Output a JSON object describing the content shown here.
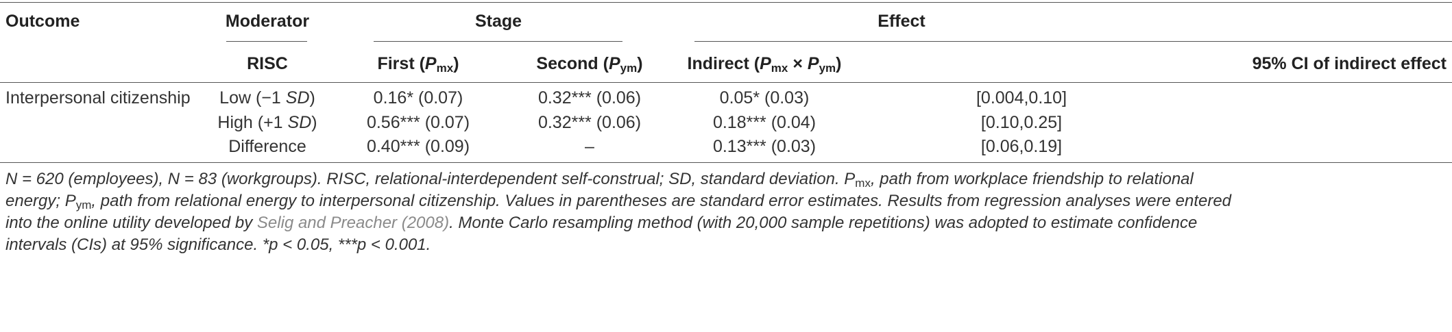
{
  "header": {
    "outcome": "Outcome",
    "moderator": "Moderator",
    "stage": "Stage",
    "effect": "Effect",
    "risc": "RISC",
    "first_prefix": "First (",
    "first_p": "P",
    "first_sub": "mx",
    "first_suffix": ")",
    "second_prefix": "Second (",
    "second_p": "P",
    "second_sub": "ym",
    "second_suffix": ")",
    "indirect_prefix": "Indirect (",
    "indirect_p1": "P",
    "indirect_sub1": "mx",
    "indirect_times": " × ",
    "indirect_p2": "P",
    "indirect_sub2": "ym",
    "indirect_suffix": ")",
    "ci": "95% CI of indirect effect"
  },
  "rows": [
    {
      "outcome": "Interpersonal citizenship",
      "mod_prefix": "Low (−1 ",
      "mod_sd": "SD",
      "mod_suffix": ")",
      "first": "0.16* (0.07)",
      "second": "0.32*** (0.06)",
      "indirect": "0.05* (0.03)",
      "ci": "[0.004,0.10]"
    },
    {
      "outcome": "",
      "mod_prefix": "High (+1 ",
      "mod_sd": "SD",
      "mod_suffix": ")",
      "first": "0.56*** (0.07)",
      "second": "0.32*** (0.06)",
      "indirect": "0.18*** (0.04)",
      "ci": "[0.10,0.25]"
    },
    {
      "outcome": "",
      "mod_prefix": "Difference",
      "mod_sd": "",
      "mod_suffix": "",
      "first": "0.40*** (0.09)",
      "second": "–",
      "indirect": "0.13*** (0.03)",
      "ci": "[0.06,0.19]"
    }
  ],
  "note": {
    "l1_a": "N = 620 (employees), N = 83 (workgroups). RISC, relational-interdependent self-construal; SD, standard deviation. P",
    "l1_sub": "mx",
    "l1_b": ", path from workplace friendship to relational",
    "l2_a": "energy; P",
    "l2_sub": "ym",
    "l2_b": ", path from relational energy to interpersonal citizenship. Values in parentheses are standard error estimates. Results from regression analyses were entered",
    "l3_a": "into the online utility developed by ",
    "l3_ref": "Selig and Preacher (2008)",
    "l3_b": ". Monte Carlo resampling method (with 20,000 sample repetitions) was adopted to estimate confidence",
    "l4": "intervals (CIs) at 95% significance. *p < 0.05, ***p < 0.001."
  }
}
